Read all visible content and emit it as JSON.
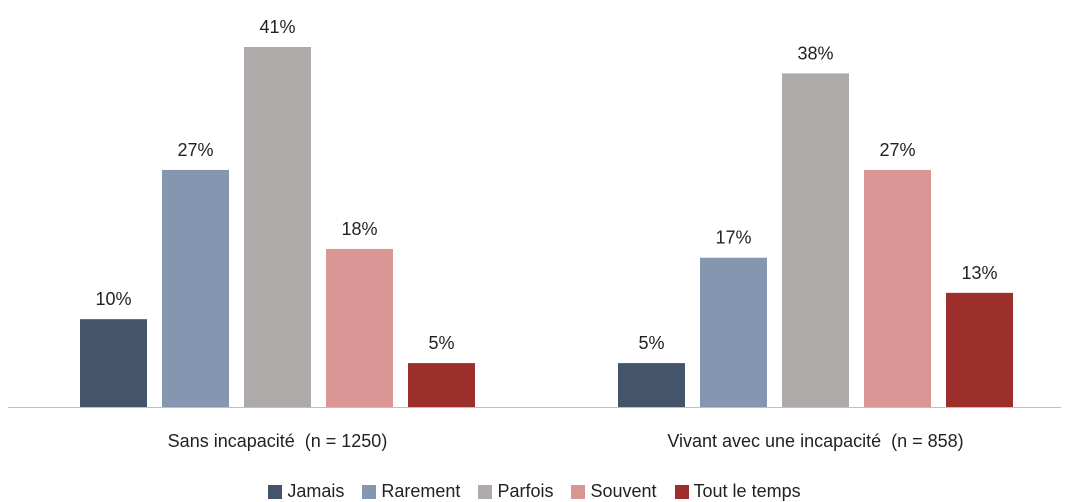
{
  "chart_data": {
    "type": "bar",
    "categories": [
      "Sans incapacité  (n = 1250)",
      "Vivant avec une incapacité  (n = 858)"
    ],
    "series": [
      {
        "name": "Jamais",
        "values": [
          10,
          5
        ],
        "labels": [
          "10%",
          "5%"
        ],
        "color": "#44546a"
      },
      {
        "name": "Rarement",
        "values": [
          27,
          17
        ],
        "labels": [
          "27%",
          "17%"
        ],
        "color": "#8496b0"
      },
      {
        "name": "Parfois",
        "values": [
          41,
          38
        ],
        "labels": [
          "41%",
          "38%"
        ],
        "color": "#aeaaaa"
      },
      {
        "name": "Souvent",
        "values": [
          18,
          27
        ],
        "labels": [
          "18%",
          "27%"
        ],
        "color": "#da9694"
      },
      {
        "name": "Tout le temps",
        "values": [
          5,
          13
        ],
        "labels": [
          "5%",
          "13%"
        ],
        "color": "#9c2e2b"
      }
    ],
    "ylim": [
      0,
      41
    ],
    "grid": false,
    "legend_position": "bottom"
  }
}
